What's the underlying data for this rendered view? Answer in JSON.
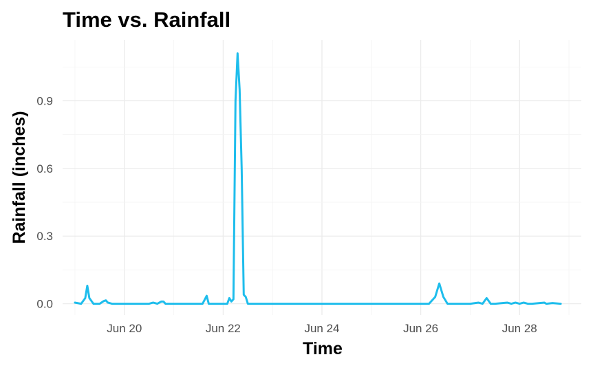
{
  "chart_data": {
    "type": "line",
    "title": "Time vs. Rainfall",
    "xlabel": "Time",
    "ylabel": "Rainfall (inches)",
    "x_tick_labels": [
      "Jun 20",
      "Jun 22",
      "Jun 24",
      "Jun 26",
      "Jun 28"
    ],
    "y_tick_labels": [
      "0.0",
      "0.3",
      "0.6",
      "0.9"
    ],
    "y_ticks": [
      0.0,
      0.3,
      0.6,
      0.9
    ],
    "xlim": [
      "2023-06-18 18:00",
      "2023-06-29 06:00"
    ],
    "ylim": [
      -0.05,
      1.17
    ],
    "grid": true,
    "line_color": "#1ebdec",
    "series": [
      {
        "x": [
          "2023-06-19 00:00",
          "2023-06-19 03:00",
          "2023-06-19 05:00",
          "2023-06-19 06:00",
          "2023-06-19 07:00",
          "2023-06-19 09:00",
          "2023-06-19 12:00",
          "2023-06-19 14:00",
          "2023-06-19 15:00",
          "2023-06-19 16:00",
          "2023-06-19 18:00",
          "2023-06-20 00:00",
          "2023-06-20 12:00",
          "2023-06-20 14:00",
          "2023-06-20 16:00",
          "2023-06-20 18:00",
          "2023-06-20 19:00",
          "2023-06-20 20:00",
          "2023-06-21 00:00",
          "2023-06-21 14:00",
          "2023-06-21 16:00",
          "2023-06-21 17:00",
          "2023-06-21 18:00",
          "2023-06-22 00:00",
          "2023-06-22 02:00",
          "2023-06-22 03:00",
          "2023-06-22 04:00",
          "2023-06-22 05:00",
          "2023-06-22 06:00",
          "2023-06-22 07:00",
          "2023-06-22 08:00",
          "2023-06-22 09:00",
          "2023-06-22 10:00",
          "2023-06-22 11:00",
          "2023-06-22 12:00",
          "2023-06-22 13:00",
          "2023-06-22 14:00",
          "2023-06-23 00:00",
          "2023-06-25 00:00",
          "2023-06-26 04:00",
          "2023-06-26 07:00",
          "2023-06-26 09:00",
          "2023-06-26 11:00",
          "2023-06-26 13:00",
          "2023-06-26 16:00",
          "2023-06-27 00:00",
          "2023-06-27 04:00",
          "2023-06-27 06:00",
          "2023-06-27 08:00",
          "2023-06-27 10:00",
          "2023-06-27 12:00",
          "2023-06-27 18:00",
          "2023-06-27 20:00",
          "2023-06-27 22:00",
          "2023-06-28 00:00",
          "2023-06-28 02:00",
          "2023-06-28 04:00",
          "2023-06-28 06:00",
          "2023-06-28 12:00",
          "2023-06-28 13:00",
          "2023-06-28 16:00",
          "2023-06-28 20:00"
        ],
        "values": [
          0.005,
          0.0,
          0.025,
          0.08,
          0.025,
          0.0,
          0.0,
          0.012,
          0.015,
          0.005,
          0.0,
          0.0,
          0.0,
          0.005,
          0.0,
          0.01,
          0.01,
          0.0,
          0.0,
          0.0,
          0.035,
          0.0,
          0.0,
          0.0,
          0.0,
          0.025,
          0.01,
          0.02,
          0.9,
          1.11,
          0.95,
          0.6,
          0.04,
          0.03,
          0.0,
          0.0,
          0.0,
          0.0,
          0.0,
          0.0,
          0.03,
          0.09,
          0.03,
          0.0,
          0.0,
          0.0,
          0.005,
          0.0,
          0.025,
          0.0,
          0.0,
          0.005,
          0.0,
          0.005,
          0.0,
          0.005,
          0.0,
          0.0,
          0.005,
          0.0,
          0.003,
          0.0
        ]
      }
    ]
  }
}
